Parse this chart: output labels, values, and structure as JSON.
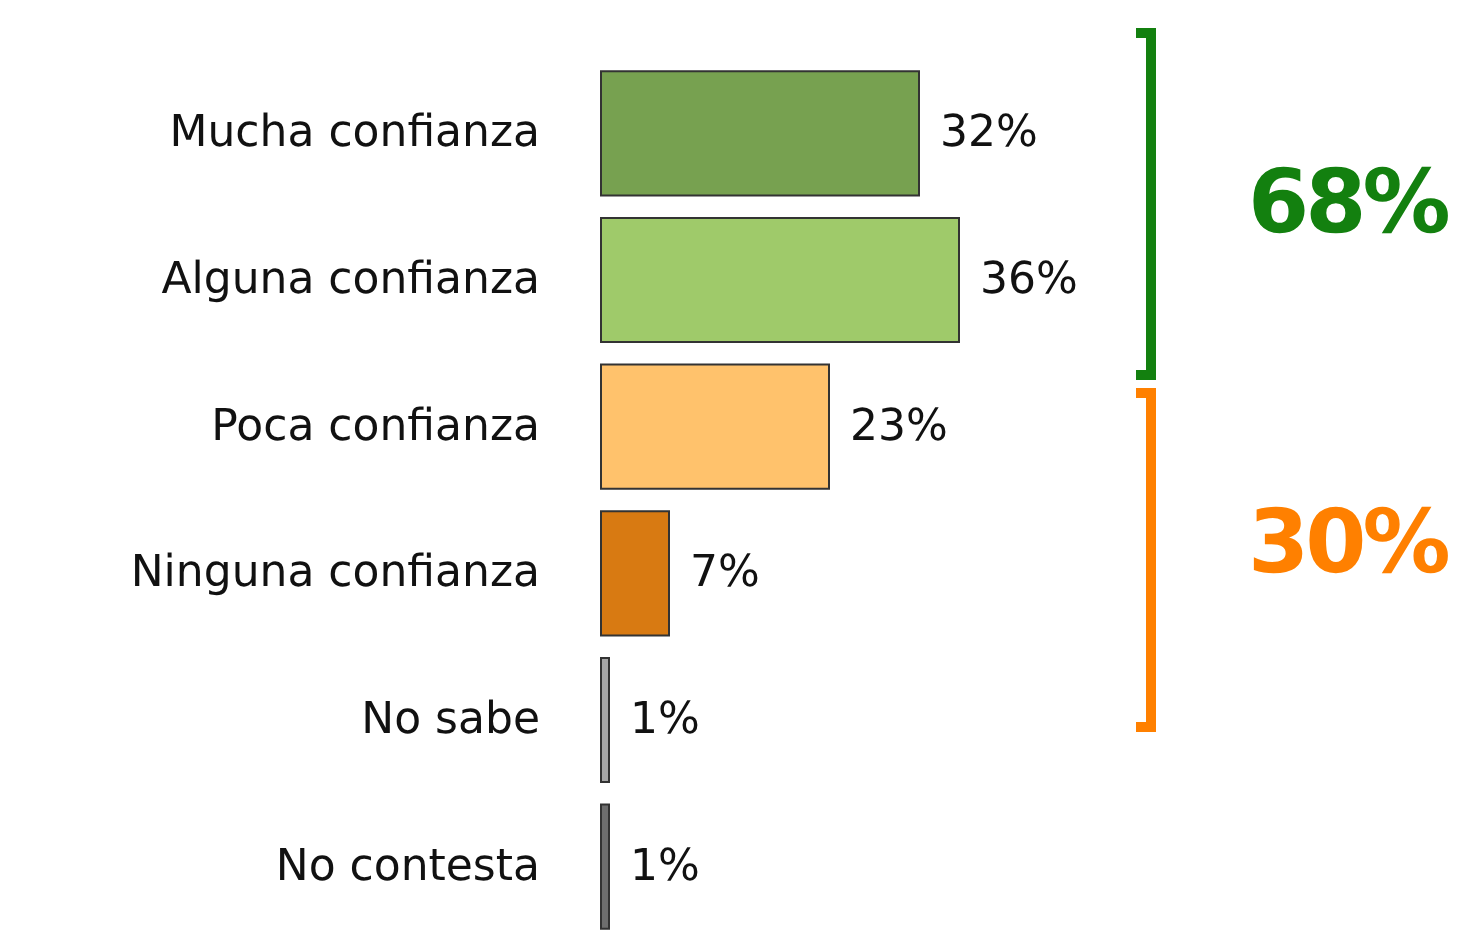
{
  "chart_data": {
    "type": "bar",
    "orientation": "horizontal",
    "categories": [
      "Mucha confianza",
      "Alguna confianza",
      "Poca confianza",
      "Ninguna confianza",
      "No sabe",
      "No contesta"
    ],
    "values": [
      32,
      36,
      23,
      7,
      1,
      1
    ],
    "colors": [
      "#77a150",
      "#9fca6a",
      "#ffc26c",
      "#d87a12",
      "#a6a6a6",
      "#6e6e6e"
    ],
    "value_labels": [
      "32%",
      "36%",
      "23%",
      "7%",
      "1%",
      "1%"
    ],
    "annotations": [
      "68%",
      "30%"
    ]
  }
}
